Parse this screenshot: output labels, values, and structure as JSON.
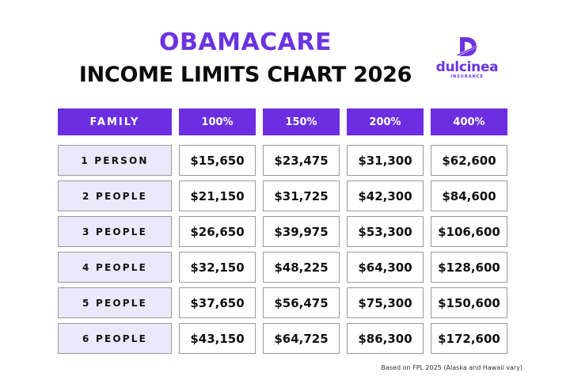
{
  "title": {
    "line1": "OBAMACARE",
    "line2": "INCOME LIMITS CHART 2026"
  },
  "logo": {
    "icon": "dulcinea-d-logo-icon",
    "name": "dulcinea",
    "subtitle": "INSURANCE"
  },
  "footnote": "Based on FPL 2025 (Alaska and Hawaii vary)",
  "colors": {
    "accent_purple": "#6b2ee0",
    "row_label_bg": "#ece8fb",
    "cell_border": "#9a9a9a"
  },
  "chart_data": {
    "type": "table",
    "title": "OBAMACARE INCOME LIMITS CHART 2026",
    "columns": [
      "FAMILY",
      "100%",
      "150%",
      "200%",
      "400%"
    ],
    "rows": [
      {
        "family": "1 PERSON",
        "values": [
          "$15,650",
          "$23,475",
          "$31,300",
          "$62,600"
        ]
      },
      {
        "family": "2 PEOPLE",
        "values": [
          "$21,150",
          "$31,725",
          "$42,300",
          "$84,600"
        ]
      },
      {
        "family": "3 PEOPLE",
        "values": [
          "$26,650",
          "$39,975",
          "$53,300",
          "$106,600"
        ]
      },
      {
        "family": "4 PEOPLE",
        "values": [
          "$32,150",
          "$48,225",
          "$64,300",
          "$128,600"
        ]
      },
      {
        "family": "5 PEOPLE",
        "values": [
          "$37,650",
          "$56,475",
          "$75,300",
          "$150,600"
        ]
      },
      {
        "family": "6 PEOPLE",
        "values": [
          "$43,150",
          "$64,725",
          "$86,300",
          "$172,600"
        ]
      }
    ]
  }
}
